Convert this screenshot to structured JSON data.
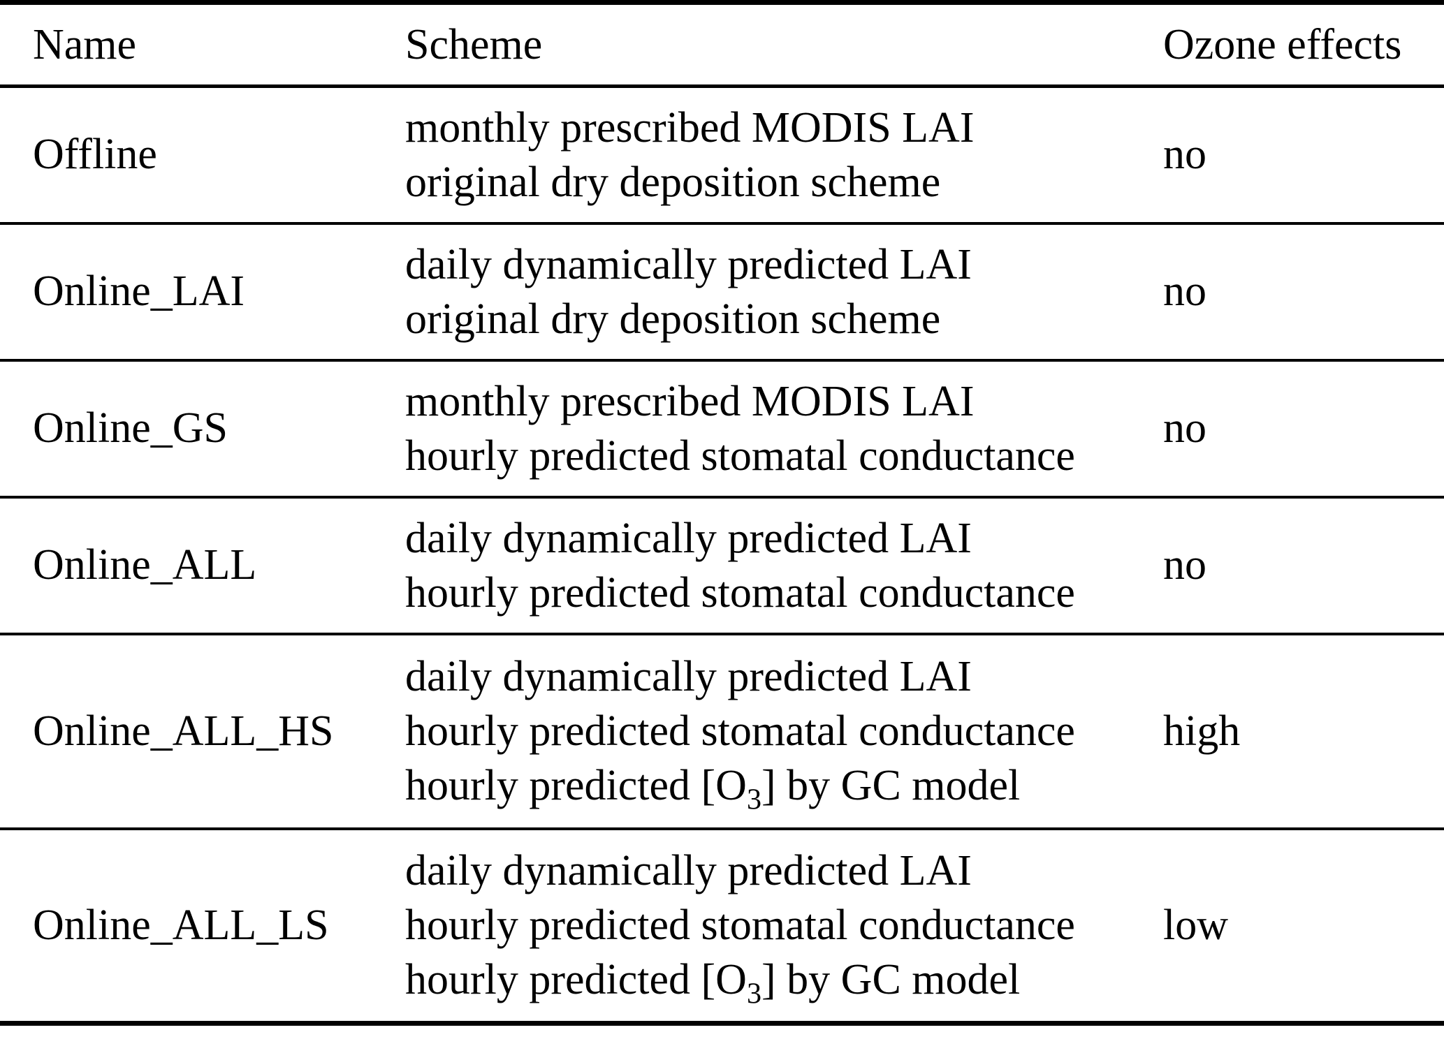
{
  "table": {
    "columns": [
      {
        "label": "Name"
      },
      {
        "label": "Scheme"
      },
      {
        "label": "Ozone effects"
      }
    ],
    "rows": [
      {
        "name": "Offline",
        "scheme_lines": [
          "monthly prescribed MODIS LAI",
          "original dry deposition scheme"
        ],
        "ozone_effects": "no"
      },
      {
        "name": "Online_LAI",
        "scheme_lines": [
          "daily dynamically predicted LAI",
          "original dry deposition scheme"
        ],
        "ozone_effects": "no"
      },
      {
        "name": "Online_GS",
        "scheme_lines": [
          "monthly prescribed MODIS LAI",
          "hourly predicted stomatal conductance"
        ],
        "ozone_effects": "no"
      },
      {
        "name": "Online_ALL",
        "scheme_lines": [
          "daily dynamically predicted LAI",
          "hourly predicted stomatal conductance"
        ],
        "ozone_effects": "no"
      },
      {
        "name": "Online_ALL_HS",
        "scheme_lines": [
          "daily dynamically predicted LAI",
          "hourly predicted stomatal conductance",
          "hourly predicted [O₃] by GC model"
        ],
        "ozone_effects": "high"
      },
      {
        "name": "Online_ALL_LS",
        "scheme_lines": [
          "daily dynamically predicted LAI",
          "hourly predicted stomatal conductance",
          "hourly predicted [O₃] by GC model"
        ],
        "ozone_effects": "low"
      }
    ],
    "colors": {
      "text": "#000000",
      "background": "#ffffff",
      "rule": "#000000"
    }
  }
}
